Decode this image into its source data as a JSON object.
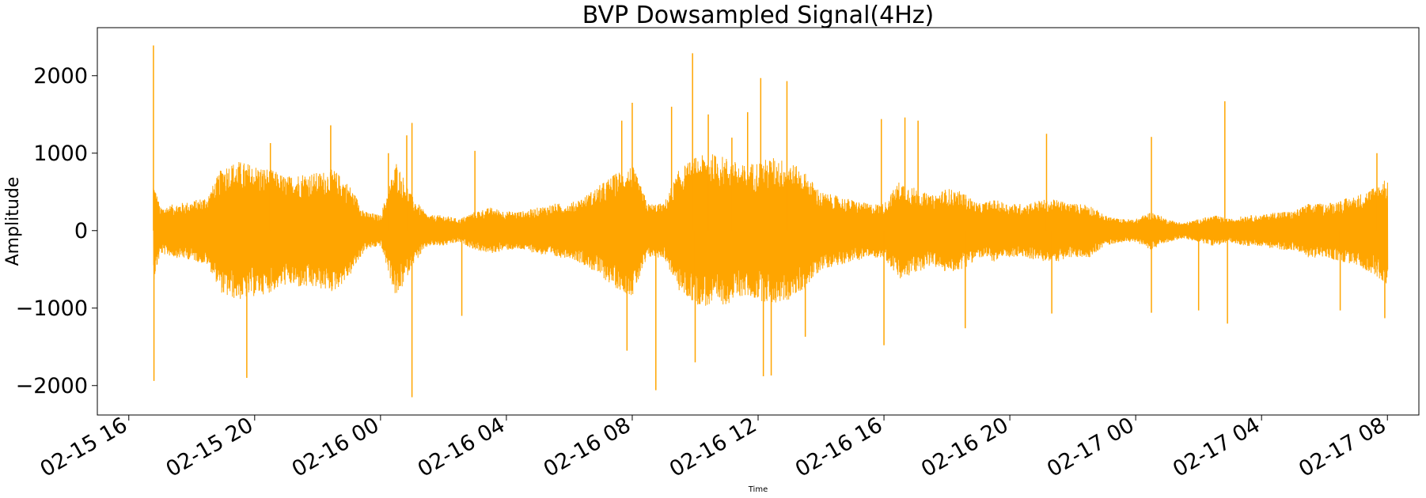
{
  "chart_data": {
    "type": "line",
    "title": "BVP Dowsampled Signal(4Hz)",
    "xlabel": "Time",
    "ylabel": "Amplitude",
    "series_color": "#FFA500",
    "grid": false,
    "legend": "none",
    "x_range": [
      "2016-02-15 15:00",
      "2016-02-17 09:00"
    ],
    "x_data_range": [
      "2016-02-15 16:47",
      "2016-02-17 08:01"
    ],
    "ylim": [
      -2380,
      2620
    ],
    "xticks": [
      "02-15 16",
      "02-15 20",
      "02-16 00",
      "02-16 04",
      "02-16 08",
      "02-16 12",
      "02-16 16",
      "02-16 20",
      "02-17 00",
      "02-17 04",
      "02-17 08"
    ],
    "yticks": [
      -2000,
      -1000,
      0,
      1000,
      2000
    ],
    "ytick_labels": [
      "−2000",
      "−1000",
      "0",
      "1000",
      "2000"
    ],
    "envelope": {
      "x": [
        "02-15 16:47",
        "02-15 17:00",
        "02-15 17:30",
        "02-15 18:00",
        "02-15 18:30",
        "02-15 19:00",
        "02-15 19:30",
        "02-15 20:00",
        "02-15 20:30",
        "02-15 21:00",
        "02-15 21:30",
        "02-15 22:00",
        "02-15 22:30",
        "02-15 23:00",
        "02-15 23:30",
        "02-16 00:00",
        "02-16 00:30",
        "02-16 01:00",
        "02-16 01:30",
        "02-16 02:00",
        "02-16 02:30",
        "02-16 03:00",
        "02-16 03:30",
        "02-16 04:00",
        "02-16 04:30",
        "02-16 05:00",
        "02-16 05:30",
        "02-16 06:00",
        "02-16 06:30",
        "02-16 07:00",
        "02-16 07:30",
        "02-16 08:00",
        "02-16 08:30",
        "02-16 09:00",
        "02-16 09:30",
        "02-16 10:00",
        "02-16 10:30",
        "02-16 11:00",
        "02-16 11:30",
        "02-16 12:00",
        "02-16 12:30",
        "02-16 13:00",
        "02-16 13:30",
        "02-16 14:00",
        "02-16 14:30",
        "02-16 15:00",
        "02-16 15:30",
        "02-16 16:00",
        "02-16 16:30",
        "02-16 17:00",
        "02-16 17:30",
        "02-16 18:00",
        "02-16 18:30",
        "02-16 19:00",
        "02-16 19:30",
        "02-16 20:00",
        "02-16 20:30",
        "02-16 21:00",
        "02-16 21:30",
        "02-16 22:00",
        "02-16 22:30",
        "02-16 23:00",
        "02-16 23:30",
        "02-17 00:00",
        "02-17 00:30",
        "02-17 01:00",
        "02-17 01:30",
        "02-17 02:00",
        "02-17 02:30",
        "02-17 03:00",
        "02-17 03:30",
        "02-17 04:00",
        "02-17 04:30",
        "02-17 05:00",
        "02-17 05:30",
        "02-17 06:00",
        "02-17 06:30",
        "02-17 07:00",
        "02-17 07:30",
        "02-17 08:00"
      ],
      "amplitude": [
        650,
        300,
        350,
        380,
        450,
        850,
        900,
        850,
        800,
        700,
        750,
        750,
        800,
        600,
        250,
        200,
        900,
        450,
        200,
        200,
        150,
        250,
        300,
        250,
        250,
        300,
        350,
        350,
        450,
        600,
        750,
        850,
        350,
        350,
        800,
        950,
        1000,
        950,
        850,
        900,
        950,
        900,
        750,
        500,
        450,
        400,
        350,
        350,
        650,
        550,
        450,
        550,
        500,
        350,
        400,
        350,
        350,
        400,
        400,
        350,
        350,
        200,
        150,
        150,
        250,
        150,
        100,
        150,
        200,
        150,
        200,
        200,
        250,
        250,
        350,
        350,
        400,
        450,
        550,
        700
      ]
    },
    "spikes": [
      {
        "x": "02-15 16:47",
        "y": 2390
      },
      {
        "x": "02-15 16:48",
        "y": -1940
      },
      {
        "x": "02-15 19:45",
        "y": -1900
      },
      {
        "x": "02-15 20:30",
        "y": 1130
      },
      {
        "x": "02-15 22:25",
        "y": 1360
      },
      {
        "x": "02-16 00:15",
        "y": 1000
      },
      {
        "x": "02-16 00:50",
        "y": 1230
      },
      {
        "x": "02-16 01:00",
        "y": 1390
      },
      {
        "x": "02-16 01:00",
        "y": -2150
      },
      {
        "x": "02-16 02:35",
        "y": -1100
      },
      {
        "x": "02-16 03:00",
        "y": 1030
      },
      {
        "x": "02-16 07:40",
        "y": 1420
      },
      {
        "x": "02-16 07:50",
        "y": -1550
      },
      {
        "x": "02-16 08:00",
        "y": 1650
      },
      {
        "x": "02-16 08:45",
        "y": -2060
      },
      {
        "x": "02-16 09:15",
        "y": 1600
      },
      {
        "x": "02-16 09:55",
        "y": 2290
      },
      {
        "x": "02-16 10:00",
        "y": -1700
      },
      {
        "x": "02-16 10:25",
        "y": 1500
      },
      {
        "x": "02-16 11:10",
        "y": 1200
      },
      {
        "x": "02-16 11:40",
        "y": 1530
      },
      {
        "x": "02-16 12:05",
        "y": 1970
      },
      {
        "x": "02-16 12:10",
        "y": -1880
      },
      {
        "x": "02-16 12:25",
        "y": -1870
      },
      {
        "x": "02-16 12:55",
        "y": 1930
      },
      {
        "x": "02-16 13:30",
        "y": -1370
      },
      {
        "x": "02-16 15:55",
        "y": 1440
      },
      {
        "x": "02-16 16:00",
        "y": -1480
      },
      {
        "x": "02-16 16:40",
        "y": 1460
      },
      {
        "x": "02-16 17:05",
        "y": 1420
      },
      {
        "x": "02-16 18:35",
        "y": -1260
      },
      {
        "x": "02-16 21:10",
        "y": 1250
      },
      {
        "x": "02-16 21:20",
        "y": -1070
      },
      {
        "x": "02-17 00:30",
        "y": 1210
      },
      {
        "x": "02-17 00:30",
        "y": -1060
      },
      {
        "x": "02-17 02:00",
        "y": -1030
      },
      {
        "x": "02-17 02:50",
        "y": 1670
      },
      {
        "x": "02-17 02:55",
        "y": -1200
      },
      {
        "x": "02-17 06:30",
        "y": -1030
      },
      {
        "x": "02-17 07:40",
        "y": 1000
      },
      {
        "x": "02-17 07:55",
        "y": -1130
      }
    ]
  }
}
